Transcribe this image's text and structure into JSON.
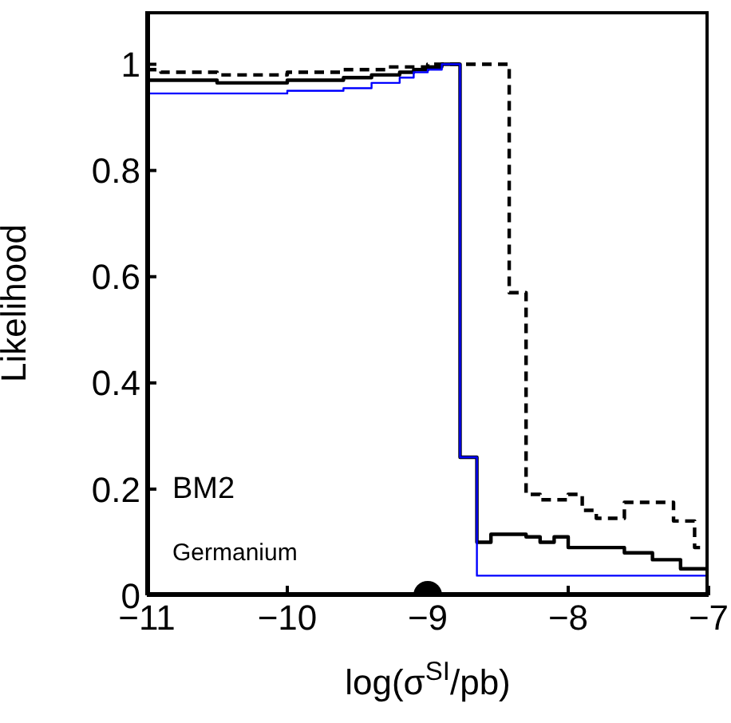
{
  "chart_data": {
    "type": "step",
    "xlabel": "log(σ$^{SI}$/pb)",
    "ylabel": "Likelihood",
    "xlim": [
      -11,
      -7
    ],
    "xticks": [
      -11,
      -10,
      -9,
      -8,
      -7
    ],
    "ylim": [
      0,
      1.1
    ],
    "yticks": [
      0,
      0.2,
      0.4,
      0.6,
      0.8,
      1
    ],
    "marker": "none",
    "annotations": [
      "BM2",
      "Germanium"
    ],
    "series": [
      {
        "color": "#000000",
        "line_style": "dashed",
        "x": [
          -11,
          -10.9,
          -10.5,
          -10,
          -9.6,
          -9.3,
          -9,
          -8.42,
          -8.3,
          -8.2,
          -8,
          -7.9,
          -7.8,
          -7.6,
          -7.4,
          -7.25,
          -7.1,
          -7
        ],
        "values": [
          0.99,
          0.985,
          0.98,
          0.985,
          0.99,
          0.995,
          1,
          0.57,
          0.19,
          0.18,
          0.19,
          0.16,
          0.145,
          0.175,
          0.175,
          0.14,
          0.09,
          0.09
        ]
      },
      {
        "color": "#000000",
        "line_style": "solid",
        "x": [
          -11,
          -10.5,
          -10,
          -9.6,
          -9.4,
          -9.2,
          -9.1,
          -9,
          -8.9,
          -8.77,
          -8.65,
          -8.55,
          -8.3,
          -8.2,
          -8.1,
          -8,
          -7.6,
          -7.4,
          -7.2,
          -7
        ],
        "values": [
          0.97,
          0.965,
          0.97,
          0.975,
          0.98,
          0.985,
          0.99,
          0.995,
          1,
          0.26,
          0.1,
          0.115,
          0.11,
          0.1,
          0.11,
          0.09,
          0.08,
          0.067,
          0.05,
          0.05
        ]
      },
      {
        "color": "#0000ff",
        "line_style": "solid",
        "x": [
          -11,
          -10,
          -9.6,
          -9.4,
          -9.2,
          -9.1,
          -9,
          -8.9,
          -8.77,
          -8.65,
          -7
        ],
        "values": [
          0.945,
          0.95,
          0.955,
          0.965,
          0.975,
          0.985,
          0.99,
          1,
          0.26,
          0.037,
          0.025
        ]
      },
      {
        "type": "scatter",
        "marker": "circle",
        "color": "#000000",
        "x": [
          -9
        ],
        "values": [
          0
        ]
      }
    ]
  }
}
